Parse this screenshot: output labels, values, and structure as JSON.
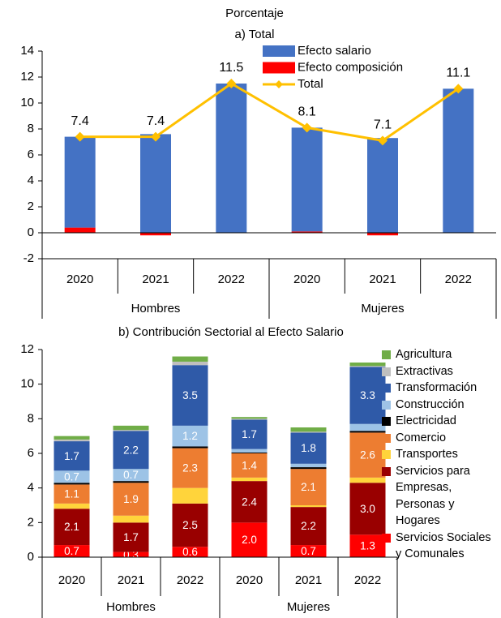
{
  "title": "Porcentaje",
  "chart_data": [
    {
      "type": "bar",
      "title": "a) Total",
      "categories": [
        "2020",
        "2021",
        "2022",
        "2020",
        "2021",
        "2022"
      ],
      "groups": [
        "Hombres",
        "Mujeres"
      ],
      "series": [
        {
          "name": "Efecto salario",
          "color": "#4472c4",
          "values": [
            7.0,
            7.6,
            11.5,
            8.0,
            7.3,
            11.1
          ]
        },
        {
          "name": "Efecto composición",
          "color": "#ff0000",
          "values": [
            0.4,
            -0.2,
            0.0,
            0.1,
            -0.2,
            0.0
          ]
        },
        {
          "name": "Total",
          "type": "line",
          "color": "#ffc000",
          "values": [
            7.4,
            7.4,
            11.5,
            8.1,
            7.1,
            11.1
          ]
        }
      ],
      "ylim": [
        -2,
        14
      ],
      "yticks": [
        -2,
        0,
        2,
        4,
        6,
        8,
        10,
        12,
        14
      ],
      "grid": false,
      "legend": "upper right"
    },
    {
      "type": "stacked_bar",
      "title": "b) Contribución Sectorial al Efecto Salario",
      "categories": [
        "2020",
        "2021",
        "2022",
        "2020",
        "2021",
        "2022"
      ],
      "groups": [
        "Hombres",
        "Mujeres"
      ],
      "series": [
        {
          "name": "Agricultura",
          "color": "#70ad47",
          "values": [
            0.2,
            0.25,
            0.3,
            0.1,
            0.25,
            0.2
          ],
          "value_labels": [
            null,
            null,
            null,
            null,
            null,
            null
          ]
        },
        {
          "name": "Extractivas",
          "color": "#bfbfbf",
          "values": [
            0.1,
            0.05,
            0.2,
            0.05,
            0.05,
            0.05
          ],
          "value_labels": [
            null,
            null,
            null,
            null,
            null,
            null
          ]
        },
        {
          "name": "Transformación",
          "color": "#2f5aa8",
          "values": [
            1.7,
            2.2,
            3.5,
            1.7,
            1.8,
            3.3
          ],
          "value_labels": [
            "1.7",
            "2.2",
            "3.5",
            "1.7",
            "1.8",
            "3.3"
          ]
        },
        {
          "name": "Construcción",
          "color": "#9dc3e6",
          "values": [
            0.7,
            0.7,
            1.2,
            0.2,
            0.2,
            0.4
          ],
          "value_labels": [
            "0.7",
            "0.7",
            "1.2",
            null,
            null,
            null
          ]
        },
        {
          "name": "Electricidad",
          "color": "#000000",
          "values": [
            0.1,
            0.1,
            0.1,
            0.05,
            0.1,
            0.1
          ],
          "value_labels": [
            null,
            null,
            null,
            null,
            null,
            null
          ]
        },
        {
          "name": "Comercio",
          "color": "#ed7d31",
          "values": [
            1.1,
            1.9,
            2.3,
            1.4,
            2.1,
            2.6
          ],
          "value_labels": [
            "1.1",
            "1.9",
            "2.3",
            "1.4",
            "2.1",
            "2.6"
          ]
        },
        {
          "name": "Transportes",
          "color": "#ffd43b",
          "values": [
            0.3,
            0.4,
            0.9,
            0.2,
            0.1,
            0.3
          ],
          "value_labels": [
            null,
            null,
            null,
            null,
            null,
            null
          ]
        },
        {
          "name": "Servicios para Empresas, Personas y Hogares",
          "color": "#990000",
          "values": [
            2.1,
            1.7,
            2.5,
            2.4,
            2.2,
            3.0
          ],
          "value_labels": [
            "2.1",
            "1.7",
            "2.5",
            "2.4",
            "2.2",
            "3.0"
          ]
        },
        {
          "name": "Servicios Sociales y Comunales",
          "color": "#ff0000",
          "values": [
            0.7,
            0.3,
            0.6,
            2.0,
            0.7,
            1.3
          ],
          "value_labels": [
            "0.7",
            "0.3",
            "0.6",
            "2.0",
            "0.7",
            "1.3"
          ]
        }
      ],
      "ylim": [
        0,
        12
      ],
      "yticks": [
        0,
        2,
        4,
        6,
        8,
        10,
        12
      ],
      "grid": false,
      "legend": "right"
    }
  ]
}
